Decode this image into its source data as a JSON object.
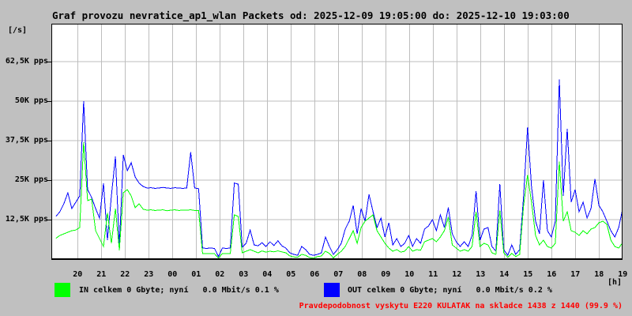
{
  "title": "Graf provozu nevratice_ap1_wlan Packets od: 2025-12-09 19:05:00 do: 2025-12-10 19:03:00",
  "colors": {
    "window_bg": "#c0c0c0",
    "plot_bg": "#ffffff",
    "grid": "#bdbdbd",
    "frame": "#000000",
    "in_series": "#00ff00",
    "out_series": "#0000ff",
    "warning_text": "#ff0000",
    "text": "#000000"
  },
  "legend": {
    "in": {
      "label": "IN celkem 0 Gbyte; nyní   0.0 Mbit/s 0.1 %",
      "color": "#00ff00"
    },
    "out": {
      "label": "OUT celkem 0 Gbyte; nyní   0.0 Mbit/s 0.2 %",
      "color": "#0000ff"
    }
  },
  "footer": {
    "warning": "Pravdepodobnost vyskytu E220 KULATAK na skladce 1438 z 1440 (99.9 %)",
    "color": "#ff0000"
  },
  "chart_data": {
    "type": "line",
    "title": "Graf provozu nevratice_ap1_wlan Packets od: 2025-12-09 19:05:00 do: 2025-12-10 19:03:00",
    "y_axis_unit": "[/s]",
    "x_axis_unit": "[h]",
    "grid": true,
    "legend_position": "bottom",
    "ylim": [
      0,
      74500
    ],
    "start_time": "19:05",
    "end_time": "19:03 (+1 day)",
    "step_minutes": 10,
    "y_ticks": [
      {
        "value": 62500,
        "label": "62,5K pps"
      },
      {
        "value": 50000,
        "label": "50K pps"
      },
      {
        "value": 37500,
        "label": "37,5K pps"
      },
      {
        "value": 25000,
        "label": "25K pps"
      },
      {
        "value": 12500,
        "label": "12,5K pps"
      }
    ],
    "x_ticks": [
      "20",
      "21",
      "22",
      "23",
      "00",
      "01",
      "02",
      "03",
      "04",
      "05",
      "06",
      "07",
      "08",
      "09",
      "10",
      "11",
      "12",
      "13",
      "14",
      "15",
      "16",
      "17",
      "18",
      "19"
    ],
    "series": [
      {
        "name": "OUT",
        "unit": "pps",
        "color": "#0000ff",
        "values": [
          13500,
          15000,
          17500,
          21000,
          16000,
          18000,
          20000,
          50000,
          22000,
          19500,
          16000,
          13000,
          24000,
          6000,
          20000,
          32500,
          4000,
          33000,
          28000,
          30500,
          26000,
          24000,
          23000,
          22500,
          22600,
          22400,
          22500,
          22700,
          22500,
          22400,
          22600,
          22500,
          22400,
          22500,
          33800,
          22500,
          22300,
          3500,
          3400,
          3500,
          3400,
          800,
          3500,
          3400,
          3500,
          24100,
          23700,
          3800,
          5000,
          9200,
          4500,
          4200,
          5200,
          4000,
          5500,
          4300,
          5800,
          4200,
          3500,
          2000,
          1500,
          1200,
          4000,
          3000,
          1500,
          1200,
          1500,
          2000,
          7000,
          4000,
          1500,
          3000,
          5000,
          9500,
          12000,
          17000,
          8000,
          16000,
          12000,
          20500,
          15000,
          10000,
          13000,
          7000,
          11500,
          4500,
          6500,
          4000,
          5000,
          7500,
          4000,
          6500,
          5000,
          9500,
          10500,
          12500,
          9000,
          14000,
          10000,
          16300,
          8000,
          5500,
          4000,
          5500,
          4000,
          7500,
          21500,
          6000,
          9500,
          10000,
          4000,
          2500,
          23700,
          3000,
          1200,
          4500,
          1500,
          3000,
          20000,
          41700,
          23000,
          12000,
          8000,
          25000,
          9000,
          7000,
          12000,
          56900,
          20000,
          41300,
          18000,
          22000,
          15000,
          18000,
          13000,
          16000,
          25400,
          17000,
          15000,
          12000,
          9000,
          7000,
          10000,
          16000
        ]
      },
      {
        "name": "IN",
        "unit": "pps",
        "color": "#00ff00",
        "values": [
          6600,
          7500,
          8000,
          8500,
          9000,
          9200,
          10000,
          37000,
          18500,
          19000,
          9000,
          6500,
          4000,
          14600,
          5000,
          16000,
          2800,
          21000,
          22000,
          20000,
          16300,
          17500,
          15800,
          15500,
          15600,
          15400,
          15500,
          15600,
          15300,
          15500,
          15600,
          15400,
          15500,
          15500,
          15600,
          15400,
          15400,
          1800,
          1700,
          1800,
          1700,
          300,
          1800,
          1700,
          1800,
          14000,
          13500,
          2000,
          2500,
          3000,
          2500,
          2000,
          2600,
          2200,
          2500,
          2300,
          2600,
          2300,
          2000,
          1000,
          700,
          600,
          1500,
          1200,
          500,
          300,
          800,
          1000,
          2500,
          1800,
          400,
          1500,
          2500,
          4000,
          6500,
          9000,
          5000,
          10000,
          12000,
          13000,
          14000,
          9000,
          7000,
          5000,
          3500,
          2500,
          3000,
          2200,
          2500,
          4000,
          2500,
          3000,
          2800,
          5500,
          6000,
          6500,
          5500,
          7000,
          9000,
          13300,
          4500,
          3500,
          2500,
          3000,
          2500,
          4000,
          15000,
          4000,
          5000,
          4500,
          2000,
          1500,
          15400,
          2000,
          600,
          1800,
          800,
          1500,
          17000,
          26600,
          18000,
          7500,
          4500,
          6000,
          4000,
          3500,
          5000,
          30900,
          12000,
          15000,
          9000,
          8500,
          7500,
          9000,
          8000,
          9500,
          10000,
          11500,
          12000,
          11000,
          6000,
          4000,
          3500,
          5200
        ]
      }
    ]
  }
}
